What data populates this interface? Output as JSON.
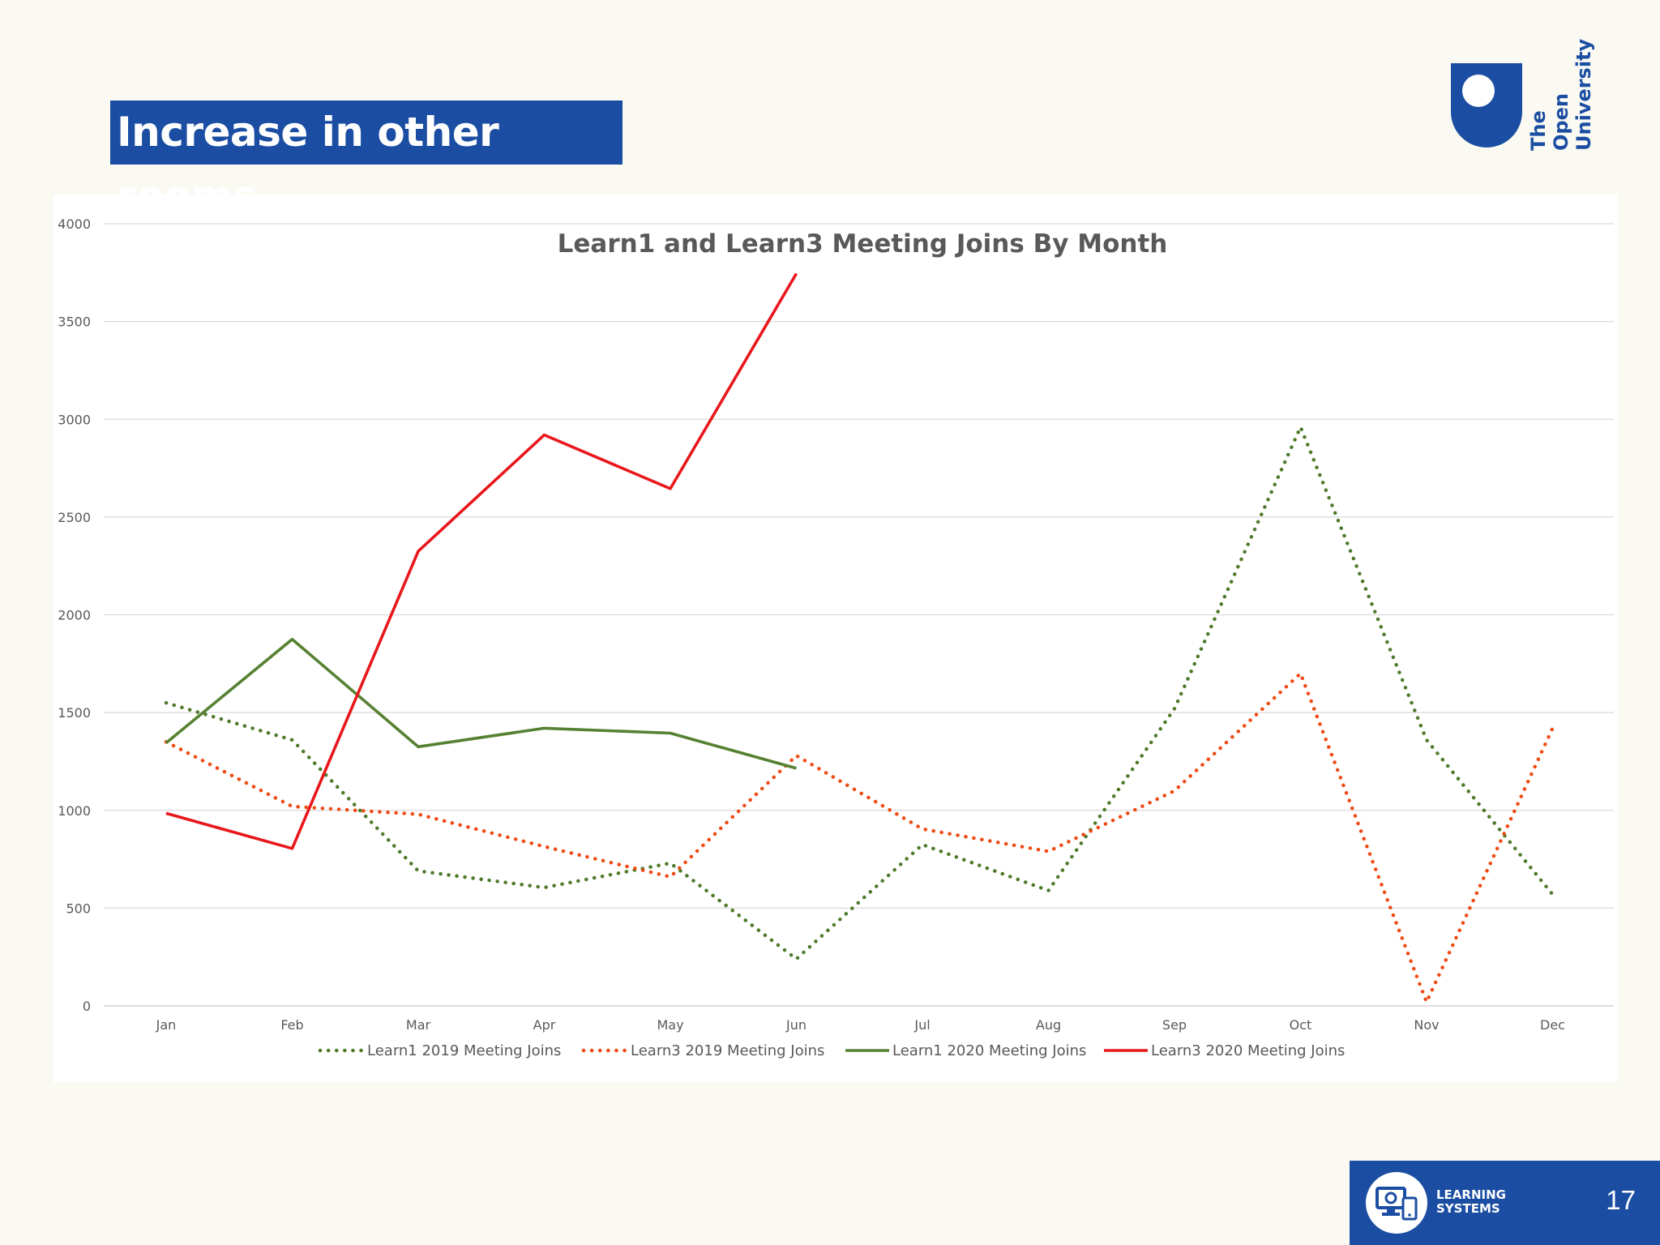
{
  "slide": {
    "title": "Increase in other rooms",
    "page_number": "17"
  },
  "logo": {
    "line1": "The Open",
    "line2": "University"
  },
  "footer": {
    "brand_line1": "LEARNING",
    "brand_line2": "SYSTEMS"
  },
  "colors": {
    "brand_blue": "#1b4ea2",
    "learn1_2019": "#4e7a2c",
    "learn3_2019": "#ee4a14",
    "learn1_2020": "#568132",
    "learn3_2020": "#e8171c"
  },
  "chart_data": {
    "type": "line",
    "title": "Learn1 and Learn3 Meeting Joins By Month",
    "categories": [
      "Jan",
      "Feb",
      "Mar",
      "Apr",
      "May",
      "Jun",
      "Jul",
      "Aug",
      "Sep",
      "Oct",
      "Nov",
      "Dec"
    ],
    "ylim": [
      0,
      4000
    ],
    "yticks": [
      0,
      500,
      1000,
      1500,
      2000,
      2500,
      3000,
      3500,
      4000
    ],
    "grid": true,
    "legend_position": "bottom",
    "series": [
      {
        "name": "Learn1 2019  Meeting Joins",
        "style": "dotted",
        "color": "#4e7a2c",
        "values": [
          1550,
          1360,
          690,
          605,
          730,
          240,
          825,
          590,
          1520,
          2960,
          1360,
          570
        ]
      },
      {
        "name": "Learn3 2019 Meeting Joins",
        "style": "dotted",
        "color": "#ee4a14",
        "values": [
          1350,
          1020,
          980,
          815,
          660,
          1280,
          905,
          790,
          1100,
          1700,
          20,
          1420
        ]
      },
      {
        "name": "Learn1 2020 Meeting Joins",
        "style": "solid",
        "color": "#568132",
        "values": [
          1345,
          1875,
          1325,
          1420,
          1395,
          1215,
          null,
          null,
          null,
          null,
          null,
          null
        ]
      },
      {
        "name": "Learn3 2020 Meeting Joins",
        "style": "solid",
        "color": "#e8171c",
        "values": [
          985,
          805,
          2325,
          2920,
          2645,
          3745,
          null,
          null,
          null,
          null,
          null,
          null
        ]
      }
    ]
  }
}
